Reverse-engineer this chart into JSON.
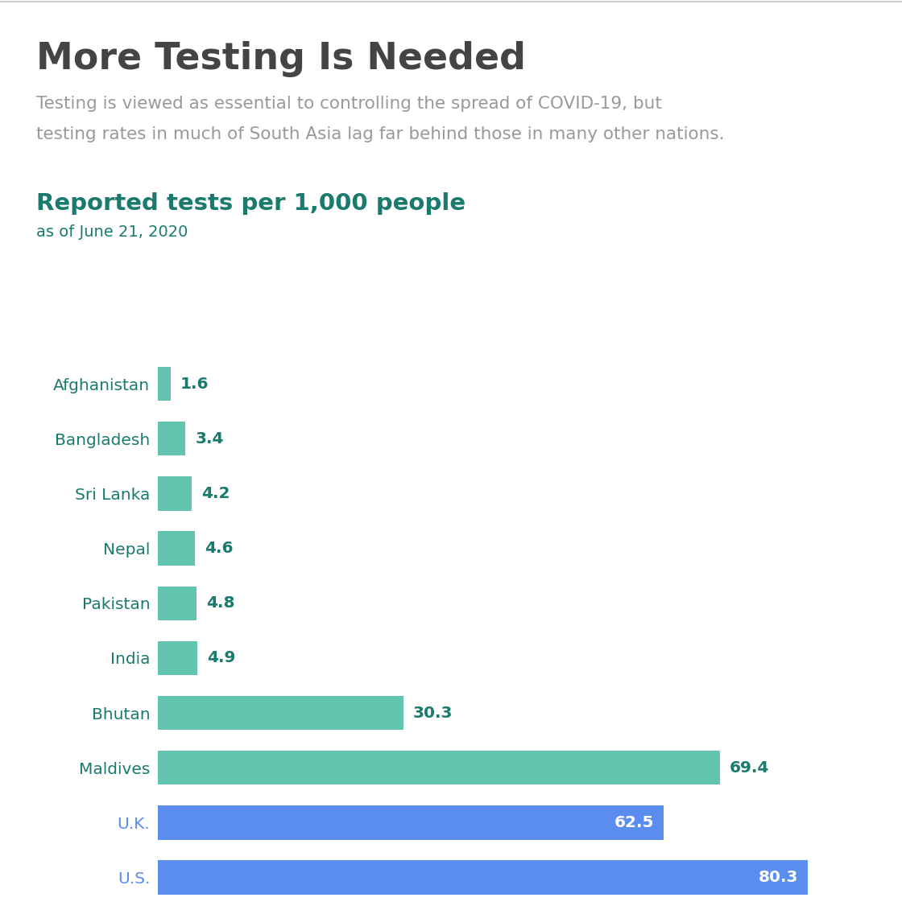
{
  "title": "More Testing Is Needed",
  "subtitle_line1": "Testing is viewed as essential to controlling the spread of COVID-19, but",
  "subtitle_line2": "testing rates in much of South Asia lag far behind those in many other nations.",
  "chart_title": "Reported tests per 1,000 people",
  "chart_subtitle": "as of June 21, 2020",
  "countries": [
    "Afghanistan",
    "Bangladesh",
    "Sri Lanka",
    "Nepal",
    "Pakistan",
    "India",
    "Bhutan",
    "Maldives",
    "U.K.",
    "U.S."
  ],
  "values": [
    1.6,
    3.4,
    4.2,
    4.6,
    4.8,
    4.9,
    30.3,
    69.4,
    62.5,
    80.3
  ],
  "bar_colors": [
    "#62c4ae",
    "#62c4ae",
    "#62c4ae",
    "#62c4ae",
    "#62c4ae",
    "#62c4ae",
    "#62c4ae",
    "#62c4ae",
    "#5b8def",
    "#5b8def"
  ],
  "label_colors": [
    "#1a7a6e",
    "#1a7a6e",
    "#1a7a6e",
    "#1a7a6e",
    "#1a7a6e",
    "#1a7a6e",
    "#1a7a6e",
    "#1a7a6e",
    "#5b8def",
    "#5b8def"
  ],
  "value_inside": [
    false,
    false,
    false,
    false,
    false,
    false,
    false,
    false,
    true,
    true
  ],
  "value_text_colors_outside": [
    "#1a7a6e",
    "#1a7a6e",
    "#1a7a6e",
    "#1a7a6e",
    "#1a7a6e",
    "#1a7a6e",
    "#1a7a6e",
    "#1a7a6e",
    "#ffffff",
    "#ffffff"
  ],
  "background_color": "#ffffff",
  "title_color": "#444444",
  "subtitle_color": "#999999",
  "chart_title_color": "#1a7a6e",
  "chart_subtitle_color": "#1a7a6e",
  "xlim": [
    0,
    88
  ]
}
